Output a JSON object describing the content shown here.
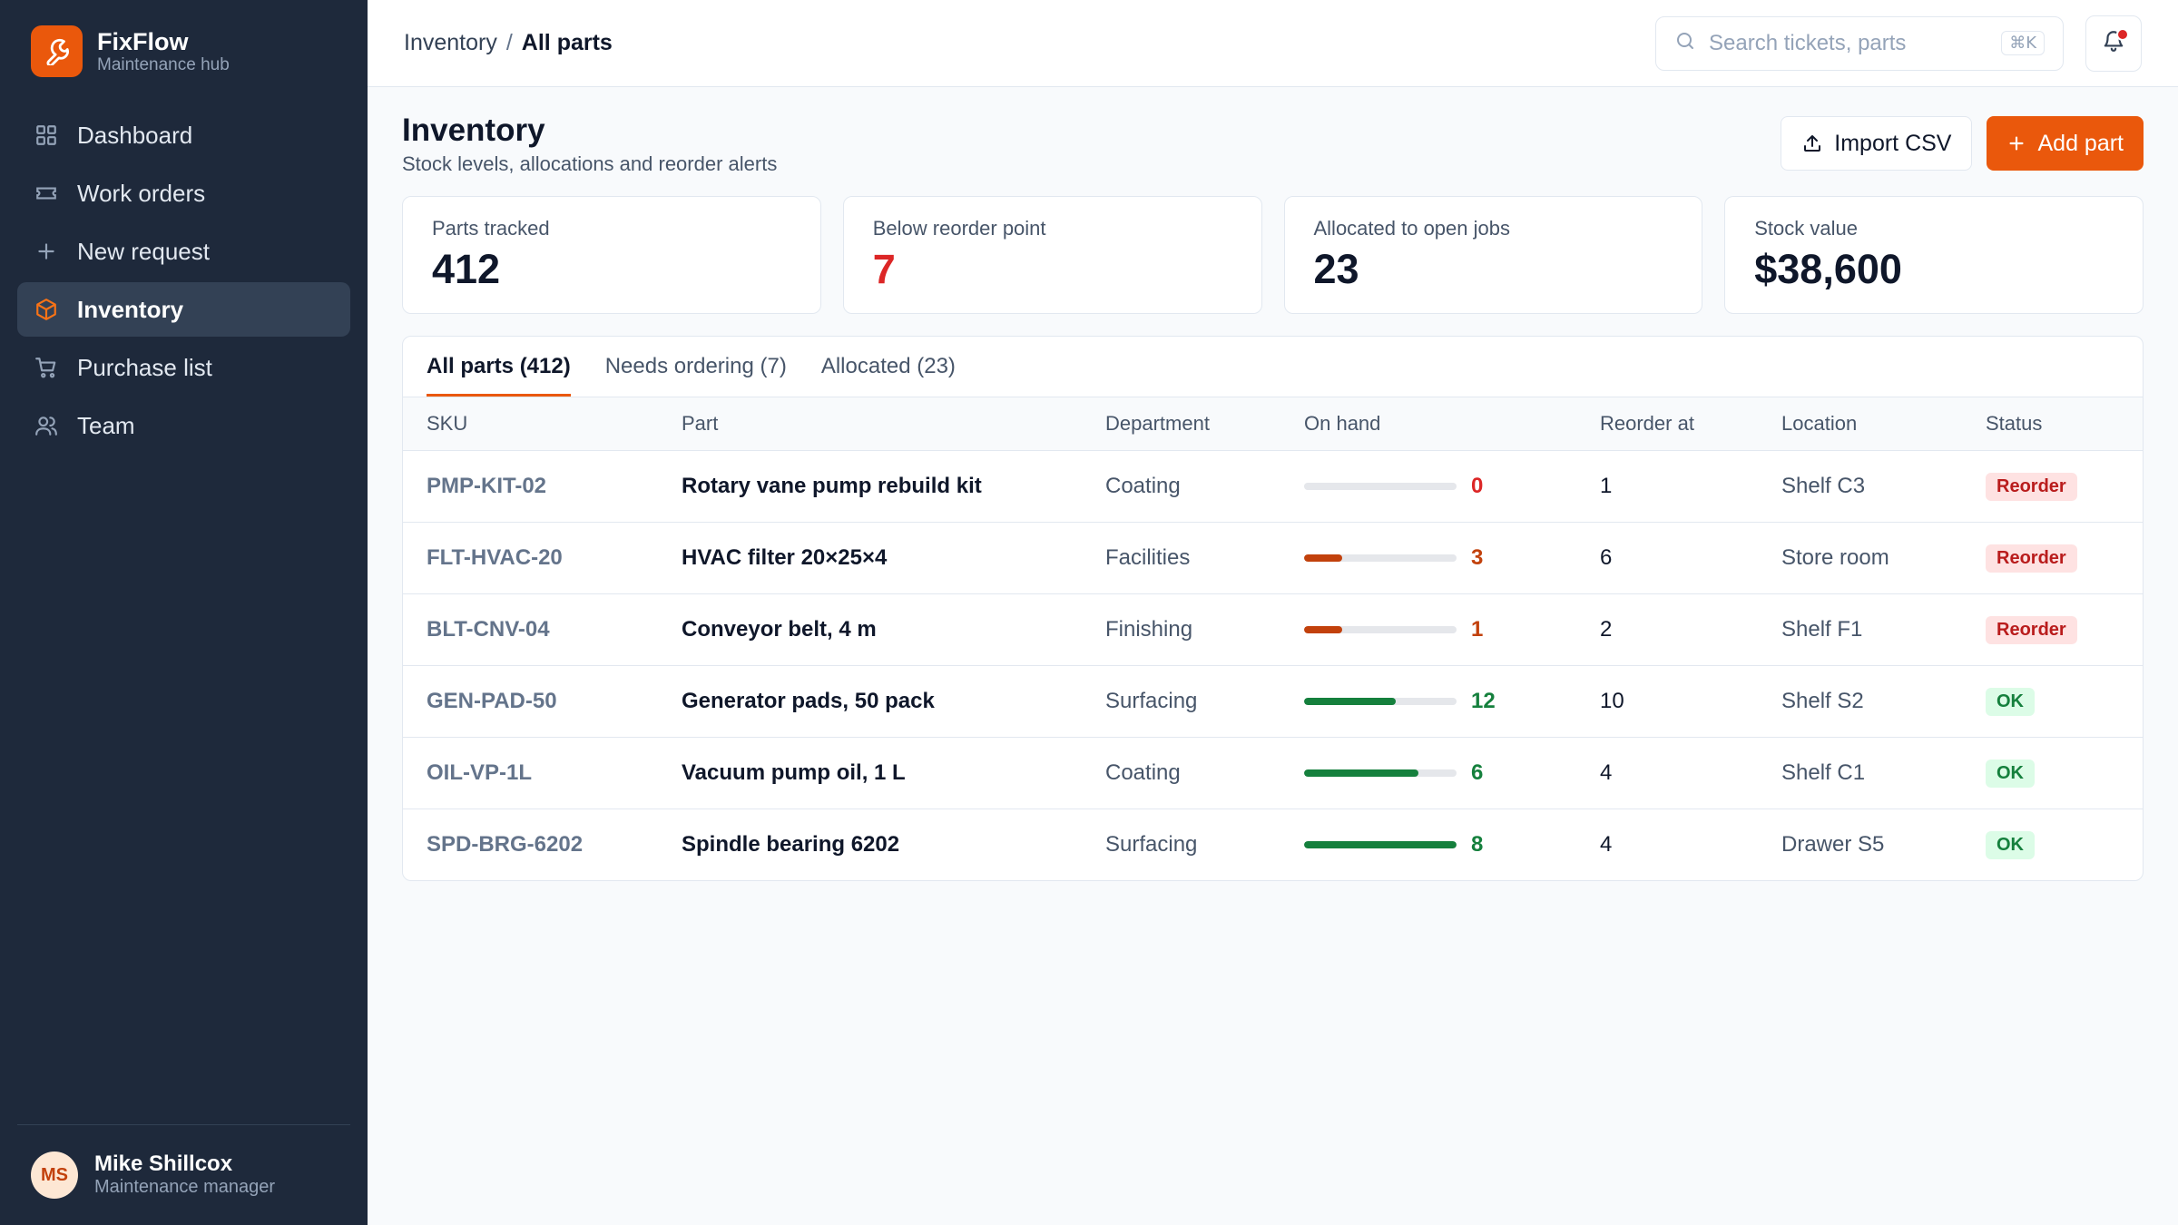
{
  "brand": {
    "name": "FixFlow",
    "subtitle": "Maintenance hub",
    "icon": "wrench-icon",
    "color": "#ea580c"
  },
  "nav": [
    {
      "label": "Dashboard",
      "icon": "grid-icon",
      "active": false
    },
    {
      "label": "Work orders",
      "icon": "ticket-icon",
      "active": false
    },
    {
      "label": "New request",
      "icon": "plus-icon",
      "active": false
    },
    {
      "label": "Inventory",
      "icon": "box-icon",
      "active": true
    },
    {
      "label": "Purchase list",
      "icon": "cart-icon",
      "active": false
    },
    {
      "label": "Team",
      "icon": "users-icon",
      "active": false
    }
  ],
  "user": {
    "initials": "MS",
    "name": "Mike Shillcox",
    "role": "Maintenance manager"
  },
  "topbar": {
    "breadcrumb": {
      "parent": "Inventory",
      "separator": "/",
      "current": "All parts"
    },
    "search": {
      "placeholder": "Search tickets, parts",
      "shortcut": "⌘K"
    },
    "notifications": {
      "has_unread": true
    }
  },
  "page": {
    "title": "Inventory",
    "subtitle": "Stock levels, allocations and reorder alerts",
    "import_label": "Import CSV",
    "add_label": "Add part"
  },
  "stats": [
    {
      "label": "Parts tracked",
      "value": "412",
      "alert": false
    },
    {
      "label": "Below reorder point",
      "value": "7",
      "alert": true
    },
    {
      "label": "Allocated to open jobs",
      "value": "23",
      "alert": false
    },
    {
      "label": "Stock value",
      "value": "$38,600",
      "alert": false
    }
  ],
  "tabs": [
    {
      "label": "All parts (412)",
      "active": true
    },
    {
      "label": "Needs ordering (7)",
      "active": false
    },
    {
      "label": "Allocated (23)",
      "active": false
    }
  ],
  "table": {
    "columns": [
      "SKU",
      "Part",
      "Department",
      "On hand",
      "Reorder at",
      "Location",
      "Status"
    ],
    "rows": [
      {
        "sku": "PMP-KIT-02",
        "part": "Rotary vane pump rebuild kit",
        "department": "Coating",
        "on_hand": "0",
        "level": 0,
        "reorder_at": "1",
        "location": "Shelf C3",
        "status": "Reorder"
      },
      {
        "sku": "FLT-HVAC-20",
        "part": "HVAC filter 20×25×4",
        "department": "Facilities",
        "on_hand": "3",
        "level": 0.25,
        "reorder_at": "6",
        "location": "Store room",
        "status": "Reorder"
      },
      {
        "sku": "BLT-CNV-04",
        "part": "Conveyor belt, 4 m",
        "department": "Finishing",
        "on_hand": "1",
        "level": 0.25,
        "reorder_at": "2",
        "location": "Shelf F1",
        "status": "Reorder"
      },
      {
        "sku": "GEN-PAD-50",
        "part": "Generator pads, 50 pack",
        "department": "Surfacing",
        "on_hand": "12",
        "level": 0.6,
        "reorder_at": "10",
        "location": "Shelf S2",
        "status": "OK"
      },
      {
        "sku": "OIL-VP-1L",
        "part": "Vacuum pump oil, 1 L",
        "department": "Coating",
        "on_hand": "6",
        "level": 0.75,
        "reorder_at": "4",
        "location": "Shelf C1",
        "status": "OK"
      },
      {
        "sku": "SPD-BRG-6202",
        "part": "Spindle bearing 6202",
        "department": "Surfacing",
        "on_hand": "8",
        "level": 1.0,
        "reorder_at": "4",
        "location": "Drawer S5",
        "status": "OK"
      }
    ]
  },
  "colors": {
    "accent": "#ea580c",
    "alert": "#dc2626",
    "low": "#c2410c",
    "ok": "#15803d",
    "reorder_badge_bg": "#fee2e2",
    "reorder_badge_text": "#b91c1c",
    "ok_badge_bg": "#dcfce7",
    "ok_badge_text": "#15803d"
  }
}
